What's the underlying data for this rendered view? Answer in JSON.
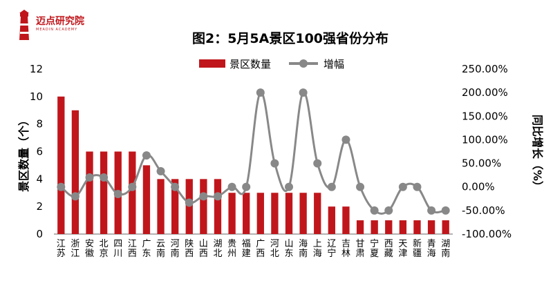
{
  "logo": {
    "text": "迈点研究院",
    "sub": "MEADIN ACADEMY"
  },
  "chart_data": {
    "type": "bar+line",
    "title": "图2：5月5A景区100强省份分布",
    "ylabel": "景区数量（个）",
    "y2label": "同比增长（%）",
    "ylim": [
      0,
      12
    ],
    "yticks": [
      "0",
      "2",
      "4",
      "6",
      "8",
      "10",
      "12"
    ],
    "y2lim": [
      -100,
      250
    ],
    "y2ticks": [
      "-100.00%",
      "-50.00%",
      "0.00%",
      "50.00%",
      "100.00%",
      "150.00%",
      "200.00%",
      "250.00%"
    ],
    "legend": {
      "position": "top",
      "bar_label": "景区数量",
      "line_label": "增幅"
    },
    "categories": [
      "江苏",
      "浙江",
      "安徽",
      "北京",
      "四川",
      "江西",
      "广东",
      "云南",
      "河南",
      "陕西",
      "山西",
      "湖北",
      "贵州",
      "福建",
      "广西",
      "河北",
      "山东",
      "海南",
      "上海",
      "辽宁",
      "吉林",
      "甘肃",
      "宁夏",
      "西藏",
      "天津",
      "新疆",
      "青海",
      "湖南"
    ],
    "series": [
      {
        "name": "景区数量",
        "type": "bar",
        "color": "#c0161b",
        "values": [
          10,
          9,
          6,
          6,
          6,
          6,
          5,
          4,
          4,
          4,
          4,
          4,
          3,
          3,
          3,
          3,
          3,
          3,
          3,
          2,
          2,
          1,
          1,
          1,
          1,
          1,
          1,
          1
        ]
      },
      {
        "name": "增幅",
        "type": "line",
        "color": "#888888",
        "values": [
          0,
          -20,
          20,
          20,
          -15,
          0,
          66.7,
          33.3,
          0,
          -33.3,
          -20,
          -20,
          0,
          0,
          200,
          50,
          0,
          200,
          50,
          0,
          100,
          0,
          -50,
          -50,
          0,
          0,
          -50,
          -50
        ]
      }
    ]
  }
}
